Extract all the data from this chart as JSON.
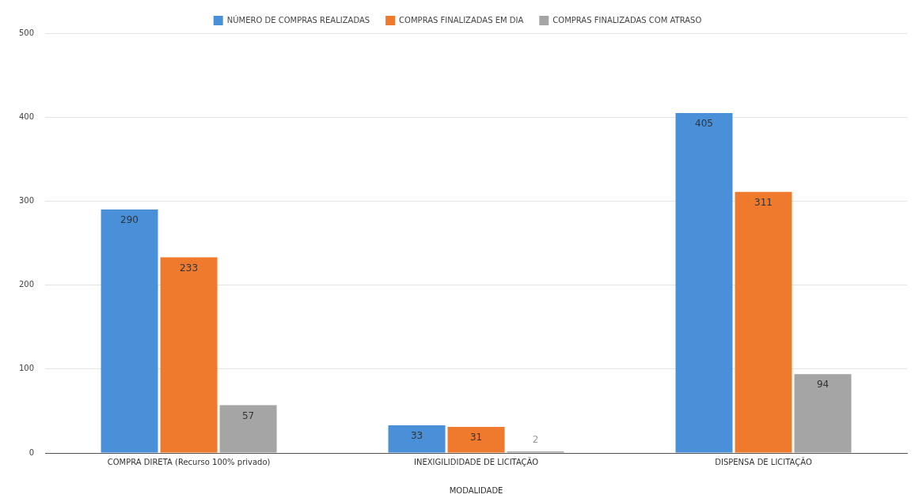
{
  "chart_data": {
    "type": "bar",
    "xlabel": "MODALIDADE",
    "categories": [
      "COMPRA DIRETA (Recurso 100% privado)",
      "INEXIGILIDIDADE DE LICITAÇÃO",
      "DISPENSA DE LICITAÇÃO"
    ],
    "series": [
      {
        "name": "NÚMERO DE COMPRAS REALIZADAS",
        "color": "#4a90d9",
        "values": [
          290,
          33,
          405
        ]
      },
      {
        "name": "COMPRAS FINALIZADAS EM DIA",
        "color": "#ef7a2e",
        "values": [
          233,
          31,
          311
        ]
      },
      {
        "name": "COMPRAS FINALIZADAS COM ATRASO",
        "color": "#a5a5a5",
        "values": [
          57,
          2,
          94
        ]
      }
    ],
    "ylim": [
      0,
      500
    ],
    "yticks": [
      0,
      100,
      200,
      300,
      400,
      500
    ],
    "grid": "y",
    "legend": "top",
    "data_labels": true
  }
}
